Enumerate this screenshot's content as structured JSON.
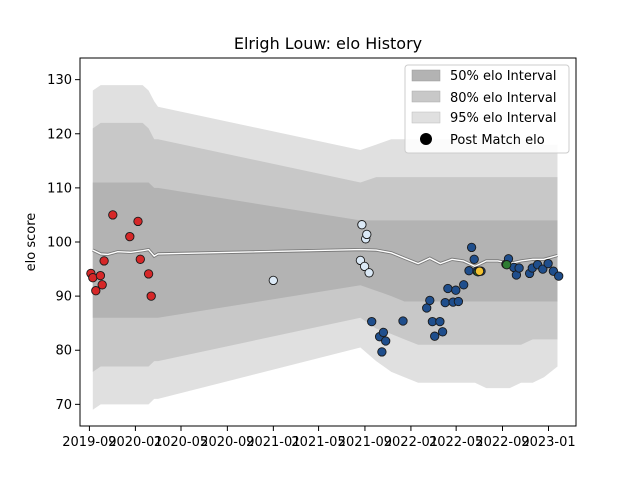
{
  "chart_data": {
    "type": "scatter",
    "title": "Elrigh Louw: elo History",
    "xlabel": "",
    "ylabel": "elo score",
    "xlim": [
      "2019-08-07",
      "2023-03-15"
    ],
    "ylim": [
      66,
      134
    ],
    "y_ticks": [
      70,
      80,
      90,
      100,
      110,
      120,
      130
    ],
    "x_ticks": [
      {
        "date": "2019-09-01",
        "label": "2019-09"
      },
      {
        "date": "2020-01-01",
        "label": "2020-01"
      },
      {
        "date": "2020-05-01",
        "label": "2020-05"
      },
      {
        "date": "2020-09-01",
        "label": "2020-09"
      },
      {
        "date": "2021-01-01",
        "label": "2021-01"
      },
      {
        "date": "2021-05-01",
        "label": "2021-05"
      },
      {
        "date": "2021-09-01",
        "label": "2021-09"
      },
      {
        "date": "2022-01-01",
        "label": "2022-01"
      },
      {
        "date": "2022-05-01",
        "label": "2022-05"
      },
      {
        "date": "2022-09-01",
        "label": "2022-09"
      },
      {
        "date": "2023-01-01",
        "label": "2023-01"
      }
    ],
    "legend": {
      "placement": "top-right",
      "entries": [
        {
          "label": "50% elo Interval",
          "color": "#b3b3b3"
        },
        {
          "label": "80% elo Interval",
          "color": "#c8c8c8"
        },
        {
          "label": "95% elo Interval",
          "color": "#e0e0e0"
        },
        {
          "label": "Post Match elo",
          "color": "#000000"
        }
      ]
    },
    "bands": {
      "x": [
        "2019-09-10",
        "2019-10-01",
        "2019-10-20",
        "2019-11-15",
        "2019-12-20",
        "2020-01-20",
        "2020-02-05",
        "2020-02-20",
        "2020-03-01",
        "2021-08-20",
        "2021-10-01",
        "2021-11-10",
        "2021-12-15",
        "2022-01-20",
        "2022-02-20",
        "2022-03-20",
        "2022-04-20",
        "2022-05-20",
        "2022-06-20",
        "2022-07-20",
        "2022-08-20",
        "2022-09-20",
        "2022-10-20",
        "2022-11-20",
        "2022-12-20",
        "2023-01-25"
      ],
      "median": [
        98.5,
        97.8,
        97.7,
        98.2,
        98.1,
        98.4,
        98.6,
        97.4,
        97.8,
        98.6,
        98.5,
        98.0,
        97.0,
        96.0,
        97.0,
        96.0,
        96.8,
        96.5,
        95.5,
        96.5,
        96.5,
        96.0,
        96.5,
        96.8,
        96.8,
        97.5
      ],
      "i95_lo": [
        69.0,
        70.0,
        70.0,
        70.0,
        70.0,
        70.0,
        70.0,
        71.0,
        71.0,
        80.5,
        78.0,
        76.0,
        75.0,
        74.0,
        74.0,
        74.0,
        74.0,
        74.0,
        74.0,
        73.0,
        73.0,
        73.0,
        74.0,
        74.0,
        75.0,
        77.0
      ],
      "i95_hi": [
        128.0,
        129.0,
        129.0,
        129.0,
        129.0,
        129.0,
        128.0,
        126.0,
        125.0,
        117.0,
        118.0,
        119.0,
        119.0,
        119.0,
        119.0,
        119.0,
        119.0,
        119.0,
        119.0,
        119.0,
        119.0,
        119.0,
        119.0,
        118.0,
        118.0,
        118.0
      ],
      "i80_lo": [
        76.0,
        77.0,
        77.0,
        77.0,
        77.0,
        77.0,
        77.0,
        78.0,
        78.0,
        86.0,
        84.0,
        83.0,
        82.0,
        81.0,
        81.0,
        81.0,
        81.0,
        81.0,
        81.0,
        81.0,
        81.0,
        81.0,
        81.0,
        82.0,
        82.0,
        82.0
      ],
      "i80_hi": [
        121.0,
        122.0,
        122.0,
        122.0,
        122.0,
        122.0,
        121.0,
        119.0,
        119.0,
        111.0,
        112.0,
        112.0,
        112.0,
        112.0,
        112.0,
        112.0,
        112.0,
        112.0,
        112.0,
        112.0,
        112.0,
        112.0,
        112.0,
        112.0,
        112.0,
        112.0
      ],
      "i50_lo": [
        86.0,
        86.0,
        86.0,
        86.0,
        86.0,
        86.0,
        86.0,
        86.0,
        86.0,
        92.0,
        91.0,
        90.0,
        89.0,
        89.0,
        89.0,
        89.0,
        89.0,
        89.0,
        89.0,
        89.0,
        89.0,
        89.0,
        89.0,
        89.0,
        89.0,
        89.0
      ],
      "i50_hi": [
        111.0,
        111.0,
        111.0,
        111.0,
        111.0,
        111.0,
        111.0,
        110.0,
        110.0,
        104.0,
        104.0,
        104.0,
        104.0,
        104.0,
        104.0,
        104.0,
        104.0,
        104.0,
        104.0,
        104.0,
        104.0,
        104.0,
        104.0,
        104.0,
        104.0,
        104.0
      ]
    },
    "series": [
      {
        "color": "#d62728",
        "points": [
          {
            "x": "2019-09-05",
            "y": 94.2
          },
          {
            "x": "2019-09-10",
            "y": 93.4
          },
          {
            "x": "2019-09-18",
            "y": 91.0
          },
          {
            "x": "2019-09-30",
            "y": 93.8
          },
          {
            "x": "2019-10-05",
            "y": 92.1
          },
          {
            "x": "2019-10-10",
            "y": 96.5
          },
          {
            "x": "2019-11-02",
            "y": 105.0
          },
          {
            "x": "2019-12-17",
            "y": 101.0
          },
          {
            "x": "2020-01-08",
            "y": 103.8
          },
          {
            "x": "2020-01-14",
            "y": 96.8
          },
          {
            "x": "2020-02-05",
            "y": 94.1
          },
          {
            "x": "2020-02-12",
            "y": 90.0
          }
        ]
      },
      {
        "color": "#dbe9f6",
        "points": [
          {
            "x": "2021-01-01",
            "y": 92.9
          },
          {
            "x": "2021-08-20",
            "y": 96.6
          },
          {
            "x": "2021-08-24",
            "y": 103.2
          },
          {
            "x": "2021-08-31",
            "y": 95.5
          },
          {
            "x": "2021-09-03",
            "y": 100.6
          },
          {
            "x": "2021-09-06",
            "y": 101.4
          },
          {
            "x": "2021-09-12",
            "y": 94.3
          }
        ]
      },
      {
        "color": "#1f4e8c",
        "points": [
          {
            "x": "2021-09-19",
            "y": 85.3
          },
          {
            "x": "2021-10-10",
            "y": 82.5
          },
          {
            "x": "2021-10-16",
            "y": 79.7
          },
          {
            "x": "2021-10-20",
            "y": 83.3
          },
          {
            "x": "2021-10-26",
            "y": 81.7
          },
          {
            "x": "2021-12-11",
            "y": 85.4
          },
          {
            "x": "2022-02-12",
            "y": 87.8
          },
          {
            "x": "2022-02-20",
            "y": 89.2
          },
          {
            "x": "2022-02-27",
            "y": 85.3
          },
          {
            "x": "2022-03-05",
            "y": 82.6
          },
          {
            "x": "2022-03-19",
            "y": 85.3
          },
          {
            "x": "2022-03-26",
            "y": 83.4
          },
          {
            "x": "2022-04-02",
            "y": 88.8
          },
          {
            "x": "2022-04-09",
            "y": 91.4
          },
          {
            "x": "2022-04-23",
            "y": 88.9
          },
          {
            "x": "2022-04-30",
            "y": 91.1
          },
          {
            "x": "2022-05-07",
            "y": 89.0
          },
          {
            "x": "2022-05-21",
            "y": 92.1
          },
          {
            "x": "2022-06-04",
            "y": 94.7
          },
          {
            "x": "2022-06-11",
            "y": 99.0
          },
          {
            "x": "2022-06-18",
            "y": 96.8
          },
          {
            "x": "2022-06-25",
            "y": 94.6
          },
          {
            "x": "2022-07-06",
            "y": 94.6
          },
          {
            "x": "2022-09-10",
            "y": 95.9
          },
          {
            "x": "2022-09-17",
            "y": 96.9
          },
          {
            "x": "2022-10-01",
            "y": 95.3
          },
          {
            "x": "2022-10-08",
            "y": 93.9
          },
          {
            "x": "2022-10-15",
            "y": 95.2
          },
          {
            "x": "2022-11-12",
            "y": 94.2
          },
          {
            "x": "2022-11-19",
            "y": 95.2
          },
          {
            "x": "2022-12-03",
            "y": 95.8
          },
          {
            "x": "2022-12-17",
            "y": 95.0
          },
          {
            "x": "2022-12-31",
            "y": 96.0
          },
          {
            "x": "2023-01-14",
            "y": 94.6
          },
          {
            "x": "2023-01-28",
            "y": 93.7
          }
        ]
      },
      {
        "color": "#2e7d32",
        "points": [
          {
            "x": "2022-06-28",
            "y": 94.5
          },
          {
            "x": "2022-09-12",
            "y": 95.8
          }
        ]
      },
      {
        "color": "#f2c230",
        "points": [
          {
            "x": "2022-07-02",
            "y": 94.6
          }
        ]
      }
    ]
  }
}
